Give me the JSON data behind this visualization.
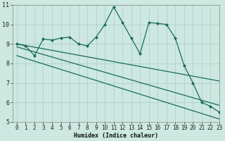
{
  "xlabel": "Humidex (Indice chaleur)",
  "background_color": "#cce8e0",
  "grid_color": "#aaccC4",
  "line_color": "#1a6b5a",
  "main_series_x": [
    0,
    1,
    2,
    3,
    4,
    5,
    6,
    7,
    8,
    9,
    10,
    11,
    12,
    13,
    14,
    15,
    16,
    17,
    18,
    19,
    20,
    21,
    22,
    23
  ],
  "main_series_y": [
    9.0,
    8.9,
    8.4,
    9.25,
    9.2,
    9.3,
    9.35,
    9.0,
    8.9,
    9.35,
    10.0,
    10.9,
    10.1,
    9.3,
    8.5,
    10.1,
    10.05,
    10.0,
    9.3,
    7.9,
    7.0,
    6.0,
    5.8,
    5.5
  ],
  "trend1_x": [
    0,
    23
  ],
  "trend1_y": [
    9.0,
    7.1
  ],
  "trend2_x": [
    0,
    23
  ],
  "trend2_y": [
    8.85,
    5.85
  ],
  "trend3_x": [
    0,
    23
  ],
  "trend3_y": [
    8.4,
    5.15
  ],
  "ylim": [
    5,
    11
  ],
  "xlim": [
    -0.5,
    23
  ],
  "yticks": [
    5,
    6,
    7,
    8,
    9,
    10,
    11
  ],
  "xticks": [
    0,
    1,
    2,
    3,
    4,
    5,
    6,
    7,
    8,
    9,
    10,
    11,
    12,
    13,
    14,
    15,
    16,
    17,
    18,
    19,
    20,
    21,
    22,
    23
  ],
  "tick_fontsize": 5.5,
  "xlabel_fontsize": 6,
  "marker_size": 2.5,
  "linewidth": 0.9
}
